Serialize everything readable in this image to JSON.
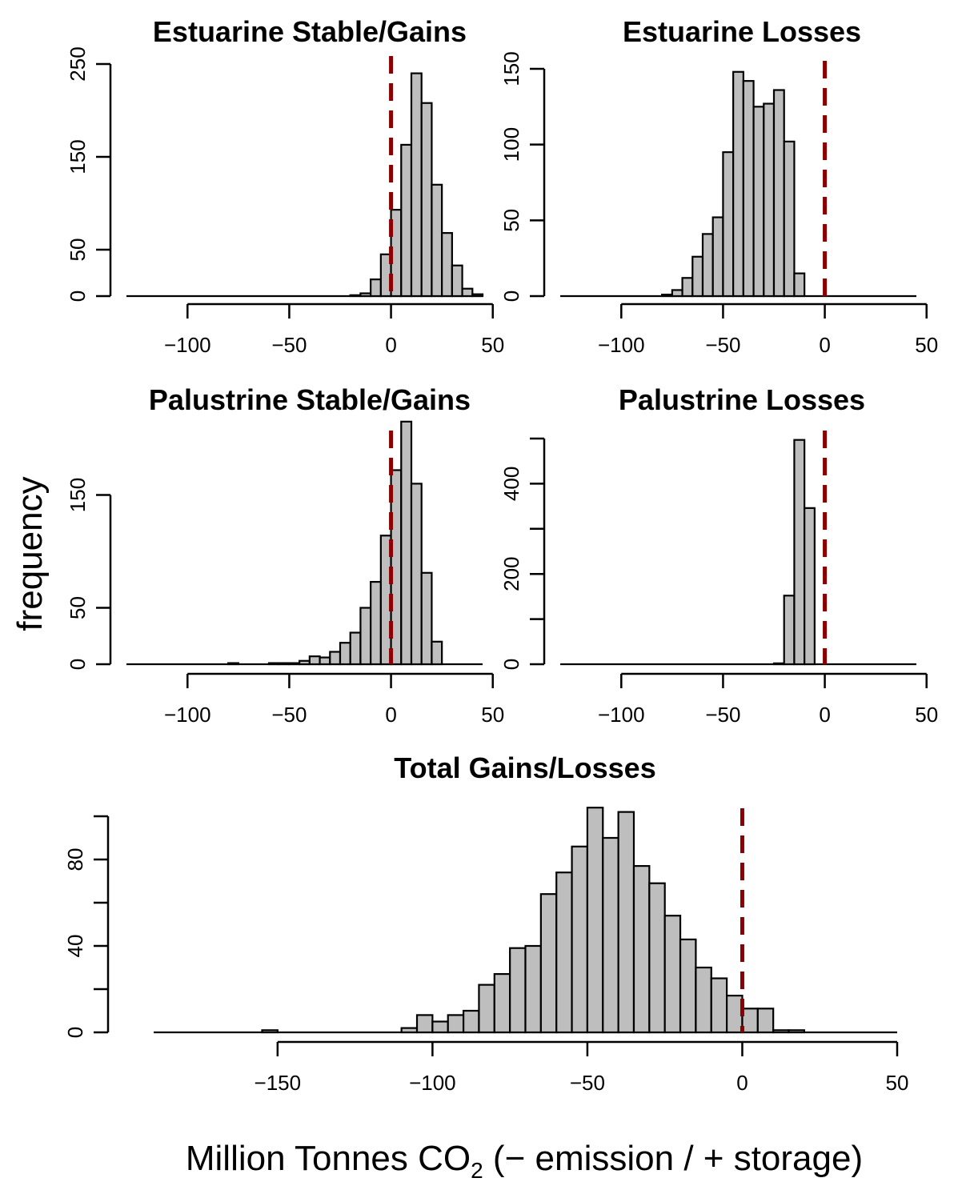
{
  "figure": {
    "ylabel": "frequency",
    "xlabel_main": "Million Tonnes CO",
    "xlabel_sub": "2",
    "xlabel_rest": " (− emission / + storage)",
    "ref_line_color": "#8b0000",
    "bar_color": "#bebebe"
  },
  "chart_data": [
    {
      "type": "bar",
      "title": "Estuarine Stable/Gains",
      "xlim": [
        -130,
        45
      ],
      "ylim": [
        0,
        250
      ],
      "x_ticks": [
        -100,
        -50,
        0,
        50
      ],
      "x_tick_labels": [
        "−100",
        "−50",
        "0",
        "50"
      ],
      "y_ticks": [
        0,
        50,
        150,
        250
      ],
      "bin_width": 5,
      "bins": [
        [
          -20,
          1
        ],
        [
          -15,
          3
        ],
        [
          -10,
          18
        ],
        [
          -5,
          45
        ],
        [
          0,
          93
        ],
        [
          5,
          163
        ],
        [
          10,
          240
        ],
        [
          15,
          208
        ],
        [
          20,
          120
        ],
        [
          25,
          68
        ],
        [
          30,
          33
        ],
        [
          35,
          8
        ],
        [
          40,
          2
        ]
      ],
      "ref_line_x": 0
    },
    {
      "type": "bar",
      "title": "Estuarine Losses",
      "xlim": [
        -130,
        45
      ],
      "ylim": [
        0,
        150
      ],
      "x_ticks": [
        -100,
        -50,
        0,
        50
      ],
      "x_tick_labels": [
        "−100",
        "−50",
        "0",
        "50"
      ],
      "y_ticks": [
        0,
        50,
        100,
        150
      ],
      "bin_width": 5,
      "bins": [
        [
          -80,
          1
        ],
        [
          -75,
          4
        ],
        [
          -70,
          12
        ],
        [
          -65,
          26
        ],
        [
          -60,
          41
        ],
        [
          -55,
          52
        ],
        [
          -50,
          95
        ],
        [
          -45,
          148
        ],
        [
          -40,
          142
        ],
        [
          -35,
          125
        ],
        [
          -30,
          127
        ],
        [
          -25,
          136
        ],
        [
          -20,
          102
        ],
        [
          -15,
          15
        ]
      ],
      "ref_line_x": 0
    },
    {
      "type": "bar",
      "title": "Palustrine Stable/Gains",
      "xlim": [
        -130,
        45
      ],
      "ylim": [
        0,
        200
      ],
      "x_ticks": [
        -100,
        -50,
        0,
        50
      ],
      "x_tick_labels": [
        "−100",
        "−50",
        "0",
        "50"
      ],
      "y_ticks": [
        0,
        50,
        150
      ],
      "bin_width": 5,
      "bins": [
        [
          -80,
          1
        ],
        [
          -60,
          1
        ],
        [
          -55,
          1
        ],
        [
          -50,
          1
        ],
        [
          -45,
          3
        ],
        [
          -40,
          7
        ],
        [
          -35,
          6
        ],
        [
          -30,
          11
        ],
        [
          -25,
          19
        ],
        [
          -20,
          28
        ],
        [
          -15,
          50
        ],
        [
          -10,
          73
        ],
        [
          -5,
          114
        ],
        [
          0,
          172
        ],
        [
          5,
          215
        ],
        [
          10,
          160
        ],
        [
          15,
          81
        ],
        [
          20,
          20
        ]
      ],
      "ref_line_x": 0,
      "x_offset": -10
    },
    {
      "type": "bar",
      "title": "Palustrine Losses",
      "xlim": [
        -130,
        45
      ],
      "ylim": [
        0,
        500
      ],
      "x_ticks": [
        -100,
        -50,
        0,
        50
      ],
      "x_tick_labels": [
        "−100",
        "−50",
        "0",
        "50"
      ],
      "y_ticks": [
        0,
        200,
        400
      ],
      "y_minor_ticks": [
        100,
        300,
        500
      ],
      "bin_width": 5,
      "bins": [
        [
          -25,
          2
        ],
        [
          -20,
          152
        ],
        [
          -15,
          497
        ],
        [
          -10,
          346
        ]
      ],
      "ref_line_x": 0
    },
    {
      "type": "bar",
      "title": "Total Gains/Losses",
      "xlim": [
        -190,
        50
      ],
      "ylim": [
        0,
        100
      ],
      "x_ticks": [
        -150,
        -100,
        -50,
        0,
        50
      ],
      "x_tick_labels": [
        "−150",
        "−100",
        "−50",
        "0",
        "50"
      ],
      "y_ticks": [
        0,
        40,
        80
      ],
      "y_minor_ticks": [
        20,
        60,
        100
      ],
      "bin_width": 5,
      "bins": [
        [
          -155,
          1
        ],
        [
          -110,
          2
        ],
        [
          -105,
          8
        ],
        [
          -100,
          5
        ],
        [
          -95,
          8
        ],
        [
          -90,
          10
        ],
        [
          -85,
          22
        ],
        [
          -80,
          27
        ],
        [
          -75,
          39
        ],
        [
          -70,
          40
        ],
        [
          -65,
          64
        ],
        [
          -60,
          74
        ],
        [
          -55,
          86
        ],
        [
          -50,
          104
        ],
        [
          -45,
          90
        ],
        [
          -40,
          102
        ],
        [
          -35,
          77
        ],
        [
          -30,
          69
        ],
        [
          -25,
          54
        ],
        [
          -20,
          43
        ],
        [
          -15,
          30
        ],
        [
          -10,
          25
        ],
        [
          -5,
          17
        ],
        [
          0,
          11
        ],
        [
          5,
          11
        ],
        [
          10,
          1
        ],
        [
          15,
          1
        ]
      ],
      "ref_line_x": 0
    }
  ]
}
